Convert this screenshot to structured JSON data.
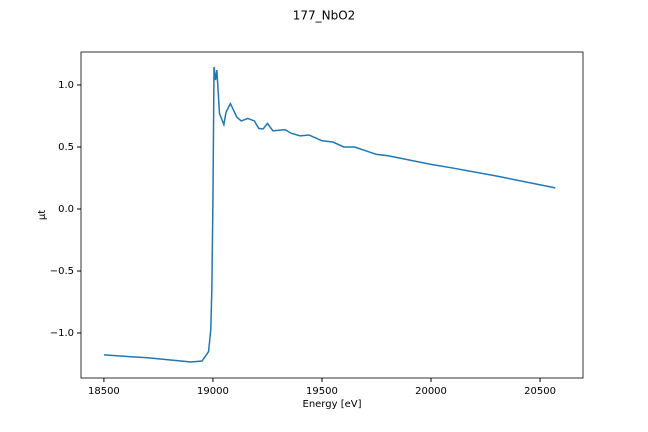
{
  "chart_data": {
    "type": "line",
    "title": "177_NbO2",
    "x_label": "Energy [eV]",
    "y_label": "μt",
    "xlim": [
      18395,
      20697
    ],
    "ylim": [
      -1.363,
      1.266
    ],
    "xticks": [
      18500,
      19000,
      19500,
      20000,
      20500
    ],
    "yticks": [
      {
        "value": -1.0,
        "label": "−1.0"
      },
      {
        "value": -0.5,
        "label": "−0.5"
      },
      {
        "value": 0.0,
        "label": "0.0"
      },
      {
        "value": 0.5,
        "label": "0.5"
      },
      {
        "value": 1.0,
        "label": "1.0"
      }
    ],
    "x": [
      18500,
      18700,
      18900,
      18950,
      18980,
      18990,
      18995,
      19000,
      19005,
      19012,
      19018,
      19025,
      19030,
      19050,
      19060,
      19080,
      19110,
      19130,
      19160,
      19190,
      19210,
      19230,
      19250,
      19275,
      19330,
      19360,
      19400,
      19440,
      19500,
      19550,
      19600,
      19650,
      19750,
      19800,
      20000,
      20100,
      20300,
      20570
    ],
    "series": [
      {
        "name": "μt",
        "color": "#1f77b4",
        "values": [
          -1.177,
          -1.2,
          -1.234,
          -1.226,
          -1.15,
          -0.976,
          -0.65,
          0.07,
          1.145,
          1.04,
          1.12,
          0.92,
          0.77,
          0.68,
          0.78,
          0.85,
          0.74,
          0.71,
          0.73,
          0.71,
          0.65,
          0.645,
          0.69,
          0.63,
          0.64,
          0.61,
          0.59,
          0.597,
          0.55,
          0.54,
          0.5,
          0.5,
          0.44,
          0.43,
          0.36,
          0.33,
          0.266,
          0.17
        ]
      }
    ]
  }
}
